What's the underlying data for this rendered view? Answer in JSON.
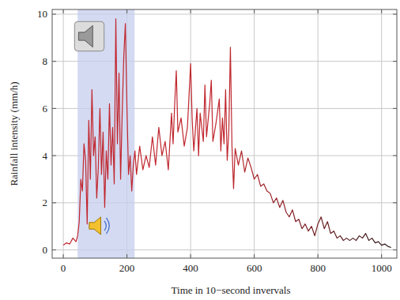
{
  "chart_data": {
    "type": "line",
    "x_label": "Time in 10−second invervals",
    "y_label": "Rainfall intensity (mm/h)",
    "xlim": [
      -35,
      1048
    ],
    "ylim": [
      -0.35,
      10.2
    ],
    "xticks": [
      0,
      200,
      400,
      600,
      800,
      1000
    ],
    "yticks": [
      0,
      2,
      4,
      6,
      8,
      10
    ],
    "grid": true,
    "highlight_x": [
      45,
      224
    ],
    "x": [
      0,
      10,
      20,
      30,
      40,
      45,
      50,
      55,
      60,
      65,
      70,
      75,
      80,
      85,
      90,
      95,
      100,
      105,
      110,
      115,
      120,
      125,
      130,
      135,
      140,
      145,
      150,
      155,
      160,
      165,
      170,
      175,
      180,
      185,
      190,
      195,
      200,
      205,
      210,
      215,
      220,
      225,
      230,
      240,
      250,
      260,
      270,
      280,
      290,
      300,
      310,
      320,
      330,
      340,
      345,
      350,
      355,
      360,
      370,
      380,
      390,
      400,
      405,
      410,
      420,
      425,
      430,
      440,
      445,
      450,
      460,
      465,
      470,
      480,
      490,
      495,
      500,
      505,
      510,
      515,
      520,
      525,
      530,
      535,
      540,
      550,
      560,
      570,
      580,
      590,
      600,
      610,
      620,
      630,
      640,
      650,
      660,
      670,
      680,
      690,
      700,
      710,
      720,
      730,
      740,
      750,
      760,
      770,
      780,
      790,
      800,
      810,
      820,
      830,
      840,
      850,
      860,
      870,
      880,
      890,
      900,
      910,
      920,
      930,
      940,
      950,
      960,
      970,
      980,
      990,
      1000,
      1010,
      1020,
      1030
    ],
    "series": [
      {
        "name": "Rainfall intensity",
        "color": "#c0262e",
        "values": [
          0.2,
          0.3,
          0.25,
          0.5,
          0.35,
          0.6,
          1.2,
          3.0,
          2.5,
          4.5,
          3.8,
          1.1,
          5.5,
          3.0,
          6.8,
          4.0,
          4.8,
          2.2,
          3.5,
          6.0,
          3.2,
          5.0,
          1.8,
          4.2,
          3.0,
          6.2,
          3.6,
          5.2,
          2.8,
          9.8,
          4.5,
          7.5,
          3.0,
          5.8,
          8.2,
          9.6,
          6.0,
          3.2,
          4.0,
          2.5,
          3.6,
          4.2,
          3.2,
          4.4,
          3.4,
          4.0,
          3.5,
          4.8,
          3.6,
          5.2,
          4.0,
          4.6,
          3.4,
          5.8,
          4.5,
          6.2,
          7.6,
          5.0,
          5.6,
          4.4,
          5.2,
          7.9,
          5.5,
          4.2,
          6.0,
          4.0,
          5.8,
          4.6,
          7.0,
          4.8,
          6.2,
          7.2,
          4.6,
          5.4,
          6.4,
          4.2,
          5.6,
          4.5,
          6.8,
          3.8,
          5.0,
          8.6,
          4.4,
          2.6,
          4.3,
          3.6,
          4.2,
          3.3,
          3.9,
          3.5,
          3.0,
          3.2,
          2.7,
          2.8,
          2.5,
          2.4,
          2.0,
          2.2,
          1.8,
          2.1,
          1.6,
          1.4,
          1.7,
          1.2,
          1.3,
          0.9,
          1.1,
          0.8,
          1.0,
          0.6,
          1.1,
          1.4,
          0.9,
          1.2,
          0.7,
          0.8,
          0.5,
          0.6,
          0.4,
          0.5,
          0.4,
          0.5,
          0.4,
          0.6,
          0.5,
          0.7,
          0.4,
          0.5,
          0.3,
          0.35,
          0.2,
          0.25,
          0.15,
          0.1
        ]
      }
    ]
  }
}
